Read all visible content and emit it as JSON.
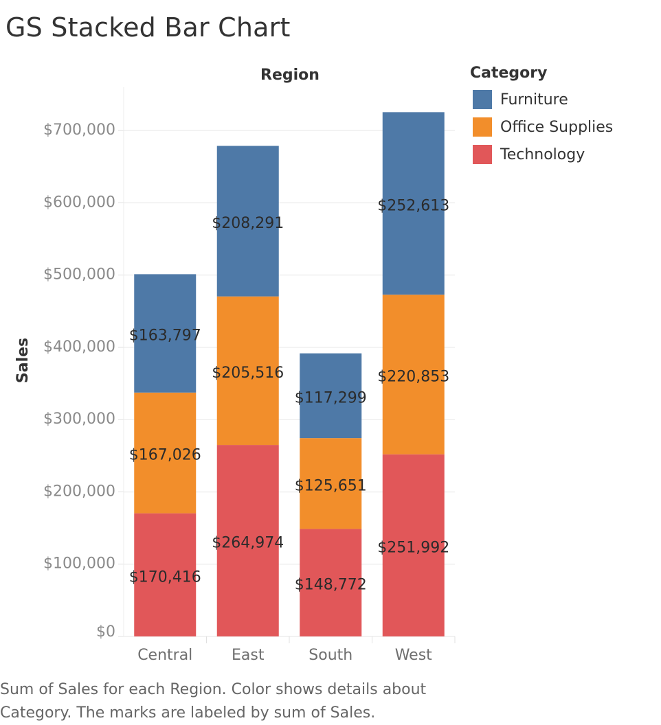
{
  "title": "GS Stacked Bar Chart",
  "caption": "Sum of Sales for each Region.  Color shows details about Category.  The marks are labeled by sum of Sales.",
  "legend": {
    "title": "Category",
    "items": [
      {
        "label": "Furniture",
        "color": "#4e79a7"
      },
      {
        "label": "Office Supplies",
        "color": "#f28e2b"
      },
      {
        "label": "Technology",
        "color": "#e15759"
      }
    ]
  },
  "chart_data": {
    "type": "bar",
    "stacked": true,
    "title": "GS Stacked Bar Chart",
    "xlabel": "Region",
    "ylabel": "Sales",
    "categories": [
      "Central",
      "East",
      "South",
      "West"
    ],
    "ylim": [
      0,
      760000
    ],
    "yticks": [
      0,
      100000,
      200000,
      300000,
      400000,
      500000,
      600000,
      700000
    ],
    "ytick_labels": [
      "$0",
      "$100,000",
      "$200,000",
      "$300,000",
      "$400,000",
      "$500,000",
      "$600,000",
      "$700,000"
    ],
    "grid": true,
    "legend_position": "top-right",
    "series": [
      {
        "name": "Technology",
        "color": "#e15759",
        "values": [
          170416,
          264974,
          148772,
          251992
        ],
        "labels": [
          "$170,416",
          "$264,974",
          "$148,772",
          "$251,992"
        ]
      },
      {
        "name": "Office Supplies",
        "color": "#f28e2b",
        "values": [
          167026,
          205516,
          125651,
          220853
        ],
        "labels": [
          "$167,026",
          "$205,516",
          "$125,651",
          "$220,853"
        ]
      },
      {
        "name": "Furniture",
        "color": "#4e79a7",
        "values": [
          163797,
          208291,
          117299,
          252613
        ],
        "labels": [
          "$163,797",
          "$208,291",
          "$117,299",
          "$252,613"
        ]
      }
    ]
  }
}
